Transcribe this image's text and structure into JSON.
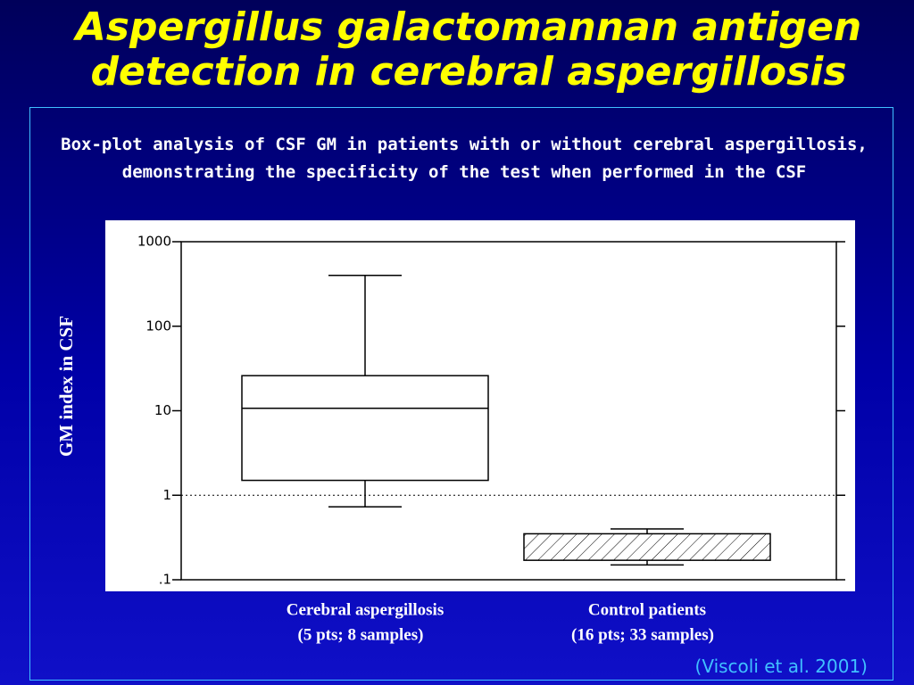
{
  "chart_data": {
    "type": "box",
    "title": [
      "Aspergillus galactomannan antigen",
      "detection in cerebral aspergillosis"
    ],
    "subtitle": "Box-plot analysis of CSF GM in patients with or without cerebral aspergillosis, demonstrating the specificity of the test when performed in the CSF",
    "ylabel": "GM index in CSF",
    "categories": [
      "Cerebral aspergillosis",
      "Control patients"
    ],
    "category_notes": [
      "(5 pts; 8 samples)",
      "(16 pts; 33 samples)"
    ],
    "boxes": [
      {
        "min": 0.73,
        "q1": 1.5,
        "median": 10.7,
        "q3": 26,
        "max": 400,
        "hatched": false
      },
      {
        "min": 0.15,
        "q1": 0.17,
        "q3": 0.35,
        "max": 0.4,
        "hatched": true
      }
    ],
    "log_y": true,
    "ylim": [
      0.1,
      1000
    ],
    "yticks": [
      {
        "value": 0.1,
        "label": ".1"
      },
      1,
      10,
      100,
      1000
    ],
    "reference_line": 1,
    "source": "(Viscoli et al. 2001)"
  }
}
